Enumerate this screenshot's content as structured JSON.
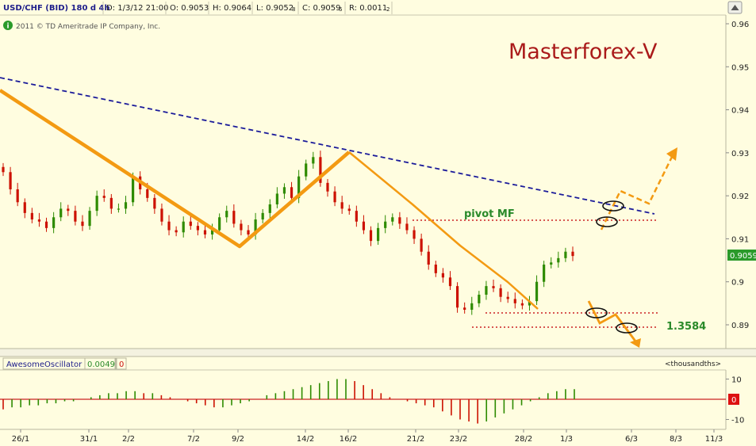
{
  "header": {
    "symbol": "USD/CHF (BID) 180 d 4h",
    "date": "D: 1/3/12 21:00",
    "open": "O: 0.9053",
    "high": "H: 0.9064",
    "low": "L: 0.9052",
    "low_frac": "8",
    "close": "C: 0.9059",
    "close_frac": "6",
    "range": "R: 0.0011",
    "range_frac": "2",
    "copyright": "2011 © TD Ameritrade IP Company, Inc.",
    "copyright_icon": "info-circle-icon",
    "scroll_icon": "scroll-up-icon"
  },
  "watermark": "Masterforex-V",
  "oscillator_header": {
    "name": "AwesomeOscillator",
    "value": "0.0049",
    "extra": "0",
    "units": "<thousandths>"
  },
  "annotations": {
    "pivot_label": "pivot MF",
    "target_label": "1.3584"
  },
  "colors": {
    "background": "#fffde0",
    "bull_candle": "#2e8b00",
    "bear_candle": "#cc1100",
    "trend_orange": "#f39a12",
    "trendline_blue": "#1b1b9a",
    "pivot_red": "#cc2222",
    "watermark": "#aa1a1a",
    "price_badge": "#2a9a2a",
    "osc_zero_badge": "#dd1111"
  },
  "chart_data": [
    {
      "type": "candlestick",
      "title": "USD/CHF (BID) 180 d 4h",
      "x_tick_labels": [
        "26/1",
        "31/1",
        "2/2",
        "7/2",
        "9/2",
        "14/2",
        "16/2",
        "21/2",
        "23/2",
        "28/2",
        "1/3",
        "6/3",
        "8/3",
        "11/3"
      ],
      "y_tick_labels": [
        "0.96",
        "0.95",
        "0.94",
        "0.93",
        "0.92",
        "0.91",
        "0.9",
        "0.89"
      ],
      "ylim": [
        0.8835,
        0.9635
      ],
      "last_price": "0.9059",
      "series": [
        {
          "name": "approximate_closes",
          "values": [
            0.9255,
            0.9215,
            0.9185,
            0.916,
            0.9145,
            0.914,
            0.9125,
            0.915,
            0.917,
            0.9165,
            0.914,
            0.913,
            0.9165,
            0.92,
            0.9195,
            0.917,
            0.917,
            0.9185,
            0.9245,
            0.9215,
            0.9195,
            0.917,
            0.914,
            0.912,
            0.9115,
            0.914,
            0.913,
            0.912,
            0.911,
            0.912,
            0.915,
            0.9165,
            0.9135,
            0.912,
            0.911,
            0.9145,
            0.916,
            0.918,
            0.9205,
            0.922,
            0.9195,
            0.9245,
            0.9275,
            0.929,
            0.923,
            0.921,
            0.9185,
            0.917,
            0.9165,
            0.914,
            0.912,
            0.9095,
            0.9125,
            0.914,
            0.915,
            0.9135,
            0.912,
            0.91,
            0.907,
            0.904,
            0.902,
            0.901,
            0.899,
            0.894,
            0.8935,
            0.895,
            0.897,
            0.899,
            0.8985,
            0.8965,
            0.896,
            0.895,
            0.8945,
            0.8955,
            0.9,
            0.904,
            0.9045,
            0.9055,
            0.907,
            0.906
          ]
        }
      ],
      "overlays": {
        "blue_trendline": [
          {
            "x": "start",
            "y": 0.9475
          },
          {
            "x": "8/3",
            "y": 0.9165
          }
        ],
        "pivot_level": 0.9145,
        "lower_levels": [
          0.8925,
          0.8905
        ],
        "orange_pattern_points": [
          0.9445,
          0.9085,
          0.93,
          0.8935
        ]
      }
    },
    {
      "type": "bar",
      "title": "AwesomeOscillator",
      "y_tick_labels": [
        "10",
        "0",
        "-10"
      ],
      "ylim": [
        -13,
        13
      ],
      "value": 0.0049,
      "series": [
        {
          "name": "AwesomeOscillator",
          "values": [
            -5,
            -4,
            -4,
            -3,
            -3,
            -2,
            -2,
            -1,
            -1,
            0,
            1,
            2,
            3,
            3,
            4,
            4,
            3,
            3,
            2,
            1,
            0,
            -1,
            -2,
            -3,
            -4,
            -4,
            -3,
            -2,
            -1,
            0,
            2,
            3,
            4,
            5,
            6,
            7,
            8,
            9,
            10,
            10,
            9,
            7,
            5,
            3,
            1,
            0,
            -1,
            -2,
            -3,
            -4,
            -6,
            -8,
            -10,
            -11,
            -12,
            -11,
            -9,
            -7,
            -5,
            -3,
            -1,
            1,
            3,
            4,
            5,
            5
          ]
        }
      ]
    }
  ]
}
